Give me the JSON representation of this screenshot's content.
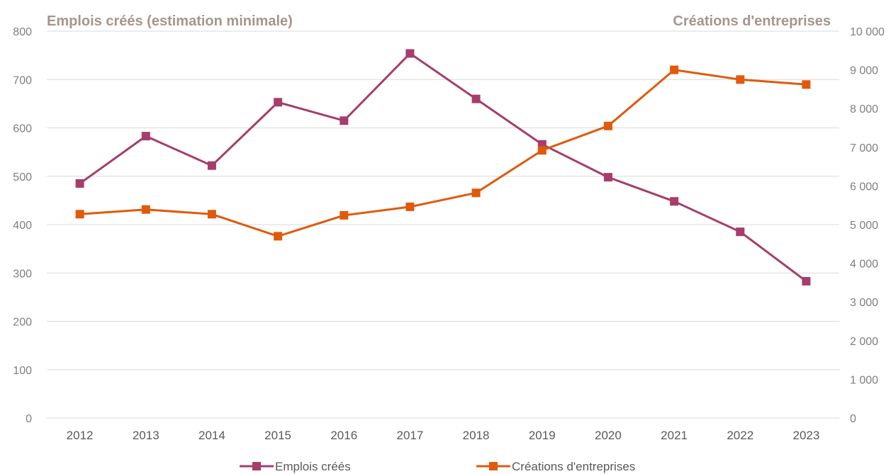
{
  "chart_data": {
    "type": "line",
    "categories": [
      "2012",
      "2013",
      "2014",
      "2015",
      "2016",
      "2017",
      "2018",
      "2019",
      "2020",
      "2021",
      "2022",
      "2023"
    ],
    "series": [
      {
        "name": "Emplois créés",
        "axis": "left",
        "color": "#a63d6b",
        "marker": "square",
        "values": [
          485,
          583,
          522,
          653,
          615,
          754,
          660,
          566,
          498,
          448,
          385,
          283
        ]
      },
      {
        "name": "Créations d'entreprises",
        "axis": "right",
        "color": "#e05a0c",
        "marker": "square",
        "values": [
          5270,
          5390,
          5270,
          4700,
          5240,
          5460,
          5820,
          6920,
          7550,
          9000,
          8750,
          8620
        ]
      }
    ],
    "y_left": {
      "label": "Emplois créés (estimation minimale)",
      "range": [
        0,
        800
      ],
      "ticks": [
        0,
        100,
        200,
        300,
        400,
        500,
        600,
        700,
        800
      ],
      "tick_labels": [
        "0",
        "100",
        "200",
        "300",
        "400",
        "500",
        "600",
        "700",
        "800"
      ]
    },
    "y_right": {
      "label": "Créations d'entreprises",
      "range": [
        0,
        10000
      ],
      "ticks": [
        0,
        1000,
        2000,
        3000,
        4000,
        5000,
        6000,
        7000,
        8000,
        9000,
        10000
      ],
      "tick_labels": [
        "0",
        "1 000",
        "2 000",
        "3 000",
        "4 000",
        "5 000",
        "6 000",
        "7 000",
        "8 000",
        "9 000",
        "10 000"
      ]
    },
    "grid": true,
    "legend_position": "bottom"
  }
}
